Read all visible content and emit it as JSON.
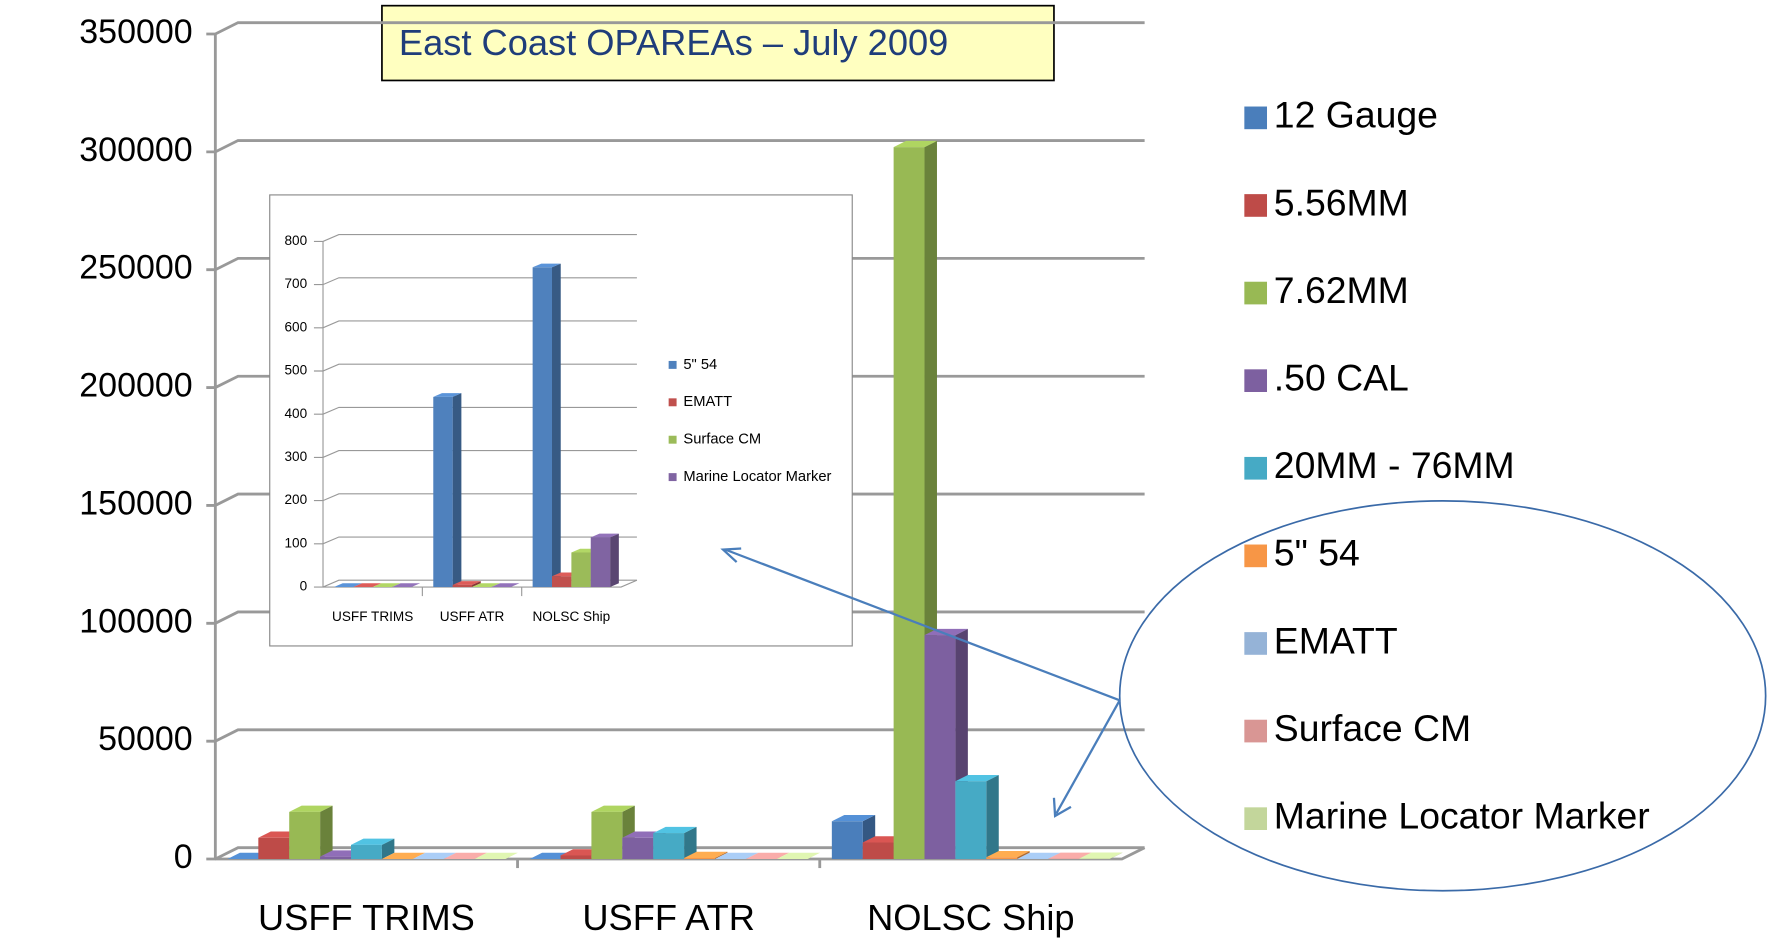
{
  "chart_data": [
    {
      "type": "bar",
      "title": "East Coast OPAREAs – July 2009",
      "categories": [
        "USFF TRIMS",
        "USFF ATR",
        "NOLSC Ship"
      ],
      "series": [
        {
          "name": "12 Gauge",
          "color": "#4a7ebb",
          "values": [
            0,
            0,
            16000
          ]
        },
        {
          "name": "5.56MM",
          "color": "#be4b48",
          "values": [
            9000,
            1500,
            7000
          ]
        },
        {
          "name": "7.62MM",
          "color": "#98b954",
          "values": [
            20000,
            20000,
            302000
          ]
        },
        {
          "name": ".50 CAL",
          "color": "#7d60a0",
          "values": [
            1000,
            9000,
            95000
          ]
        },
        {
          "name": "20MM - 76MM",
          "color": "#46aac5",
          "values": [
            6000,
            11000,
            33000
          ]
        },
        {
          "name": "5\" 54",
          "color": "#f79646",
          "values": [
            0,
            440,
            740
          ]
        },
        {
          "name": "EMATT",
          "color": "#95b3d7",
          "values": [
            0,
            5,
            25
          ]
        },
        {
          "name": "Surface CM",
          "color": "#d99694",
          "values": [
            0,
            0,
            80
          ]
        },
        {
          "name": "Marine Locator Marker",
          "color": "#c3d69b",
          "values": [
            0,
            0,
            115
          ]
        }
      ],
      "ylim": [
        0,
        350000
      ],
      "yticks": [
        0,
        50000,
        100000,
        150000,
        200000,
        250000,
        300000,
        350000
      ],
      "grid": true,
      "legend": "right"
    },
    {
      "type": "bar",
      "categories": [
        "USFF TRIMS",
        "USFF ATR",
        "NOLSC Ship"
      ],
      "series": [
        {
          "name": "5\" 54",
          "color": "#4f81bd",
          "values": [
            0,
            440,
            740
          ]
        },
        {
          "name": "EMATT",
          "color": "#c0504d",
          "values": [
            0,
            5,
            25
          ]
        },
        {
          "name": "Surface CM",
          "color": "#9bbb59",
          "values": [
            0,
            0,
            80
          ]
        },
        {
          "name": "Marine Locator Marker",
          "color": "#8064a2",
          "values": [
            0,
            0,
            115
          ]
        }
      ],
      "ylim": [
        0,
        800
      ],
      "yticks": [
        0,
        100,
        200,
        300,
        400,
        500,
        600,
        700,
        800
      ],
      "grid": true,
      "legend": "right"
    }
  ]
}
